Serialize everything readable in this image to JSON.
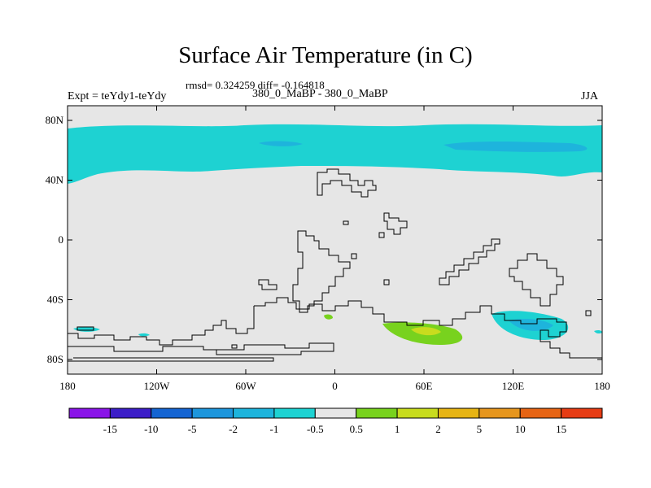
{
  "title": "Surface Air Temperature (in C)",
  "stats": "rmsd= 0.324259 diff= -0.164818",
  "left_label": "Expt = teYdy1-teYdy",
  "center_label": "380_0_MaBP - 380_0_MaBP",
  "right_label": "JJA",
  "lat_ticks": [
    {
      "label": "80N",
      "lat": 80
    },
    {
      "label": "40N",
      "lat": 40
    },
    {
      "label": "0",
      "lat": 0
    },
    {
      "label": "40S",
      "lat": -40
    },
    {
      "label": "80S",
      "lat": -80
    }
  ],
  "lon_ticks": [
    {
      "label": "180",
      "lon": -180
    },
    {
      "label": "120W",
      "lon": -120
    },
    {
      "label": "60W",
      "lon": -60
    },
    {
      "label": "0",
      "lon": 0
    },
    {
      "label": "60E",
      "lon": 60
    },
    {
      "label": "120E",
      "lon": 120
    },
    {
      "label": "180",
      "lon": 180
    }
  ],
  "legend": {
    "colors": [
      "#8a14e8",
      "#3c1ec8",
      "#1464d2",
      "#1e96dc",
      "#1eb4dc",
      "#1ed2d2",
      "#e6e6e6",
      "#78d21e",
      "#c8dc1e",
      "#e6b414",
      "#e6961e",
      "#e66414",
      "#e63c14"
    ],
    "labels": [
      "-15",
      "-10",
      "-5",
      "-2",
      "-1",
      "-0.5",
      "0.5",
      "1",
      "2",
      "5",
      "10",
      "15"
    ]
  },
  "colors": {
    "background": "#e6e6e6",
    "cool": "#1ed2d2",
    "cooler": "#1eb4dc",
    "warm": "#78d21e",
    "warmer": "#c8dc1e"
  }
}
